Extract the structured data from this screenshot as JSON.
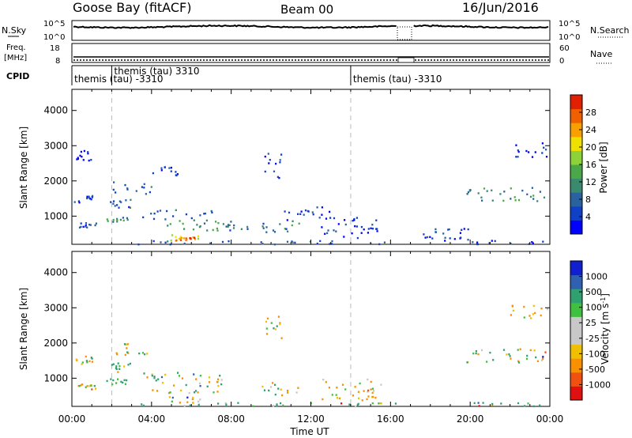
{
  "header": {
    "station": "Goose Bay (fitACF)",
    "beam": "Beam 00",
    "date": "16/Jun/2016"
  },
  "top_panels": {
    "nsky": {
      "label": "N.Sky",
      "tick_top": "10^5",
      "tick_bottom": "10^0",
      "right_label": "N.Search",
      "right_tick_top": "10^5",
      "right_tick_bottom": "10^0"
    },
    "freq": {
      "label_line1": "Freq.",
      "label_line2": "[MHz]",
      "tick_top": "18",
      "tick_bottom": "8",
      "right_label": "Nave",
      "right_tick_top": "60",
      "right_tick_bottom": "0"
    },
    "cpid": {
      "label": "CPID",
      "segments": [
        {
          "start_h": 0,
          "end_h": 2.0,
          "text": "themis (tau) -3310"
        },
        {
          "start_h": 2.0,
          "end_h": 14.0,
          "text": "themis (tau) 3310"
        },
        {
          "start_h": 14.0,
          "end_h": 24.0,
          "text": "themis (tau) -3310"
        }
      ]
    }
  },
  "colorbars": {
    "power": {
      "label": "Power [dB]",
      "ticks": [
        "4",
        "8",
        "12",
        "16",
        "20",
        "24",
        "28"
      ],
      "colors": [
        "#0000ff",
        "#1040c8",
        "#2a62a0",
        "#3a8a70",
        "#4aa848",
        "#8cd238",
        "#f0e000",
        "#f8a000",
        "#f06000",
        "#e02000"
      ]
    },
    "velocity": {
      "label": "Velocity [m s",
      "label_sup": "-1",
      "label_end": "]",
      "ticks": [
        "-1000",
        "-500",
        "-100",
        "-25",
        "25",
        "100",
        "500",
        "1000"
      ],
      "colors": [
        "#e01010",
        "#f05010",
        "#f89000",
        "#f0c000",
        "#c8c8c8",
        "#c8c8c8",
        "#40c040",
        "#30a070",
        "#3060b0",
        "#1020d0"
      ]
    }
  },
  "chart_data": [
    {
      "type": "heatmap",
      "panel": "power",
      "ylabel": "Slant Range [km]",
      "yticks": [
        1000,
        2000,
        3000,
        4000
      ],
      "ylim": [
        200,
        4600
      ],
      "xlim": [
        0,
        24
      ],
      "scatter_regions": [
        {
          "t0": 0.1,
          "t1": 1.0,
          "r0": 1400,
          "r1": 1650,
          "v": 6
        },
        {
          "t0": 0.3,
          "t1": 1.2,
          "r0": 700,
          "r1": 850,
          "v": 7
        },
        {
          "t0": 0.2,
          "t1": 1.0,
          "r0": 2600,
          "r1": 2900,
          "v": 5
        },
        {
          "t0": 1.7,
          "t1": 2.8,
          "r0": 850,
          "r1": 1000,
          "v": 12
        },
        {
          "t0": 1.9,
          "t1": 3.0,
          "r0": 1200,
          "r1": 1500,
          "v": 8
        },
        {
          "t0": 2.0,
          "t1": 4.0,
          "r0": 1650,
          "r1": 2000,
          "v": 9
        },
        {
          "t0": 4.0,
          "t1": 5.5,
          "r0": 2150,
          "r1": 2450,
          "v": 7
        },
        {
          "t0": 3.5,
          "t1": 7.0,
          "r0": 900,
          "r1": 1200,
          "v": 8
        },
        {
          "t0": 4.5,
          "t1": 7.5,
          "r0": 600,
          "r1": 900,
          "v": 13
        },
        {
          "t0": 4.8,
          "t1": 6.5,
          "r0": 320,
          "r1": 500,
          "v": 22
        },
        {
          "t0": 5.2,
          "t1": 6.2,
          "r0": 340,
          "r1": 420,
          "v": 27
        },
        {
          "t0": 3.3,
          "t1": 16.5,
          "r0": 220,
          "r1": 330,
          "v": 9
        },
        {
          "t0": 7.5,
          "t1": 9.0,
          "r0": 600,
          "r1": 900,
          "v": 10
        },
        {
          "t0": 9.5,
          "t1": 11.5,
          "r0": 500,
          "r1": 900,
          "v": 11
        },
        {
          "t0": 9.6,
          "t1": 10.5,
          "r0": 2100,
          "r1": 2800,
          "v": 7
        },
        {
          "t0": 10.5,
          "t1": 13.0,
          "r0": 900,
          "r1": 1300,
          "v": 6
        },
        {
          "t0": 12.5,
          "t1": 15.5,
          "r0": 400,
          "r1": 1000,
          "v": 6
        },
        {
          "t0": 17.5,
          "t1": 20.0,
          "r0": 220,
          "r1": 700,
          "v": 7
        },
        {
          "t0": 20.0,
          "t1": 23.8,
          "r0": 220,
          "r1": 330,
          "v": 6
        },
        {
          "t0": 19.8,
          "t1": 23.8,
          "r0": 1450,
          "r1": 1850,
          "v": 12
        },
        {
          "t0": 22.0,
          "t1": 23.9,
          "r0": 2700,
          "r1": 3100,
          "v": 5
        }
      ]
    },
    {
      "type": "heatmap",
      "panel": "velocity",
      "ylabel": "Slant Range [km]",
      "yticks": [
        1000,
        2000,
        3000,
        4000
      ],
      "ylim": [
        200,
        4600
      ],
      "xlim": [
        0,
        24
      ],
      "xlabel": "Time UT",
      "xticks": [
        "00:00",
        "04:00",
        "08:00",
        "12:00",
        "16:00",
        "20:00",
        "00:00"
      ],
      "scatter_regions": [
        {
          "t0": 0.1,
          "t1": 1.0,
          "r0": 1400,
          "r1": 1650,
          "v": 0
        },
        {
          "t0": 0.3,
          "t1": 1.2,
          "r0": 700,
          "r1": 850,
          "v": 0
        },
        {
          "t0": 1.7,
          "t1": 2.8,
          "r0": 850,
          "r1": 1000,
          "v": 150
        },
        {
          "t0": 1.9,
          "t1": 3.0,
          "r0": 1200,
          "r1": 1500,
          "v": 60
        },
        {
          "t0": 2.0,
          "t1": 4.0,
          "r0": 1650,
          "r1": 2000,
          "v": 0
        },
        {
          "t0": 3.5,
          "t1": 7.5,
          "r0": 600,
          "r1": 1200,
          "v": 0
        },
        {
          "t0": 4.8,
          "t1": 6.5,
          "r0": 320,
          "r1": 500,
          "v": -60
        },
        {
          "t0": 3.3,
          "t1": 16.5,
          "r0": 220,
          "r1": 330,
          "v": 200
        },
        {
          "t0": 9.5,
          "t1": 11.5,
          "r0": 500,
          "r1": 900,
          "v": 0
        },
        {
          "t0": 9.6,
          "t1": 10.5,
          "r0": 2100,
          "r1": 2800,
          "v": 0
        },
        {
          "t0": 12.5,
          "t1": 15.5,
          "r0": 400,
          "r1": 1000,
          "v": -150
        },
        {
          "t0": 19.8,
          "t1": 23.8,
          "r0": 1450,
          "r1": 1850,
          "v": 0
        },
        {
          "t0": 20.0,
          "t1": 23.8,
          "r0": 220,
          "r1": 330,
          "v": 300
        },
        {
          "t0": 22.0,
          "t1": 23.9,
          "r0": 2700,
          "r1": 3100,
          "v": -200
        }
      ]
    }
  ]
}
